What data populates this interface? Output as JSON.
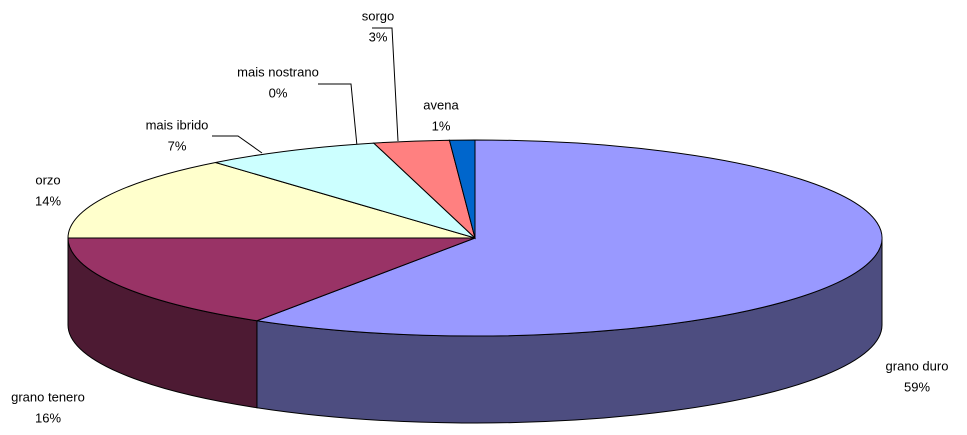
{
  "chart_data": {
    "type": "pie",
    "categories": [
      "grano duro",
      "grano tenero",
      "orzo",
      "mais ibrido",
      "mais nostrano",
      "sorgo",
      "avena"
    ],
    "values": [
      59,
      16,
      14,
      7,
      0,
      3,
      1
    ],
    "value_labels": [
      "59%",
      "16%",
      "14%",
      "7%",
      "0%",
      "3%",
      "1%"
    ],
    "colors": [
      "#9999ff",
      "#993366",
      "#ffffcc",
      "#ccffff",
      "#660066",
      "#ff8080",
      "#0066cc"
    ],
    "side_colors": [
      "#4d4d80",
      "#4d1a33",
      "#808066",
      "#668080",
      "#330033",
      "#804040",
      "#003366"
    ]
  }
}
